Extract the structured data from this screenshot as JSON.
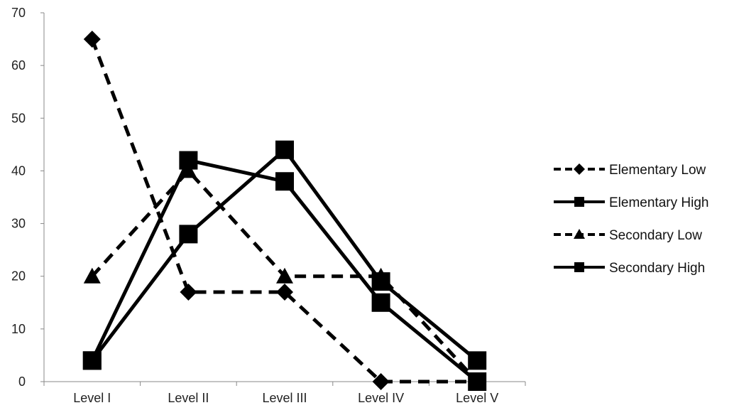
{
  "chart_data": {
    "type": "line",
    "categories": [
      "Level I",
      "Level II",
      "Level III",
      "Level IV",
      "Level V"
    ],
    "ylim": [
      0,
      70
    ],
    "yticks": [
      0,
      10,
      20,
      30,
      40,
      50,
      60,
      70
    ],
    "grid": false,
    "legend_position": "right",
    "series": [
      {
        "name": "Elementary Low",
        "values": [
          65,
          17,
          17,
          0,
          0
        ],
        "line_style": "dashed",
        "marker": "diamond",
        "color": "#000000"
      },
      {
        "name": "Elementary High",
        "values": [
          4,
          42,
          38,
          15,
          0
        ],
        "line_style": "solid",
        "marker": "square",
        "color": "#000000"
      },
      {
        "name": "Secondary Low",
        "values": [
          20,
          40,
          20,
          20,
          0
        ],
        "line_style": "dashed",
        "marker": "triangle",
        "color": "#000000"
      },
      {
        "name": "Secondary High",
        "values": [
          4,
          28,
          44,
          19,
          4
        ],
        "line_style": "solid",
        "marker": "square",
        "color": "#000000"
      }
    ]
  }
}
